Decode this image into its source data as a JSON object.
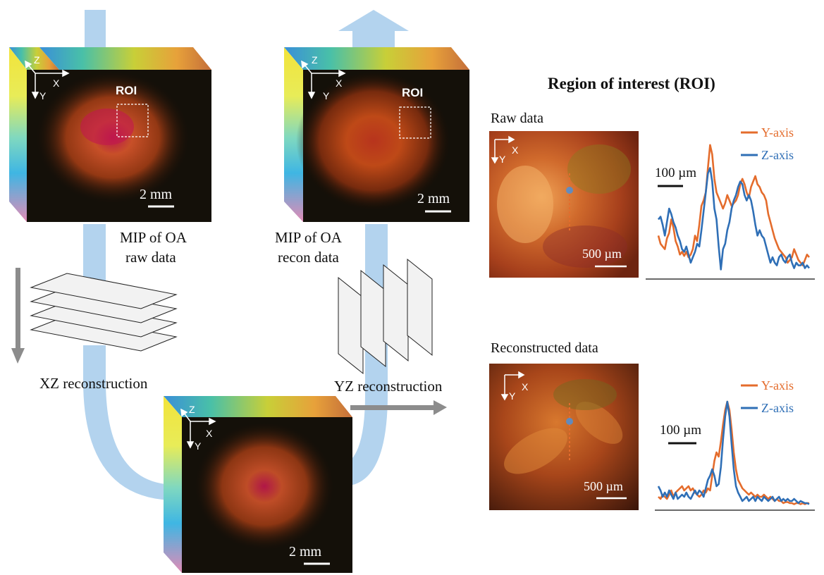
{
  "roi_section": {
    "title": "Region of interest (ROI)",
    "raw_label": "Raw data",
    "recon_label": "Reconstructed data"
  },
  "cubes": [
    {
      "id": "raw",
      "axis_z": "Z",
      "axis_x": "X",
      "axis_y": "Y",
      "roi_label": "ROI",
      "scale_label": "2 mm"
    },
    {
      "id": "recon",
      "axis_z": "Z",
      "axis_x": "X",
      "axis_y": "Y",
      "roi_label": "ROI",
      "scale_label": "2 mm"
    },
    {
      "id": "middle",
      "axis_z": "Z",
      "axis_x": "X",
      "axis_y": "Y",
      "scale_label": "2 mm"
    }
  ],
  "captions": {
    "mip_raw": [
      "MIP of OA",
      "raw data"
    ],
    "mip_recon": [
      "MIP of OA",
      "recon data"
    ],
    "xz": "XZ reconstruction",
    "yz": "YZ reconstruction"
  },
  "insets": [
    {
      "id": "raw",
      "axis_x": "X",
      "axis_y": "Y",
      "scale_label": "500 µm"
    },
    {
      "id": "recon",
      "axis_x": "X",
      "axis_y": "Y",
      "scale_label": "500 µm"
    }
  ],
  "chart_data": [
    {
      "type": "line",
      "title": "",
      "scale_label": "100 µm",
      "x": [
        0,
        1,
        2,
        3,
        4,
        5,
        6,
        7,
        8,
        9,
        10,
        11,
        12,
        13,
        14,
        15,
        16,
        17,
        18,
        19,
        20,
        21,
        22,
        23,
        24,
        25,
        26,
        27,
        28,
        29,
        30,
        31,
        32,
        33,
        34,
        35,
        36,
        37,
        38,
        39,
        40,
        41,
        42,
        43,
        44,
        45,
        46,
        47,
        48,
        49,
        50,
        51,
        52,
        53,
        54,
        55,
        56,
        57,
        58,
        59,
        60,
        61,
        62,
        63,
        64,
        65,
        66,
        67,
        68,
        69,
        70
      ],
      "ylim": [
        0,
        1
      ],
      "series": [
        {
          "name": "Y-axis",
          "color": "#e46c2c",
          "values": [
            0.3,
            0.24,
            0.22,
            0.2,
            0.28,
            0.32,
            0.42,
            0.36,
            0.26,
            0.22,
            0.16,
            0.18,
            0.15,
            0.18,
            0.14,
            0.16,
            0.2,
            0.3,
            0.26,
            0.38,
            0.52,
            0.56,
            0.62,
            0.8,
            0.97,
            0.9,
            0.72,
            0.62,
            0.58,
            0.54,
            0.5,
            0.54,
            0.6,
            0.56,
            0.52,
            0.54,
            0.56,
            0.6,
            0.68,
            0.72,
            0.68,
            0.62,
            0.58,
            0.66,
            0.7,
            0.74,
            0.68,
            0.66,
            0.62,
            0.6,
            0.56,
            0.46,
            0.4,
            0.34,
            0.28,
            0.24,
            0.2,
            0.18,
            0.16,
            0.14,
            0.1,
            0.12,
            0.14,
            0.2,
            0.16,
            0.12,
            0.1,
            0.08,
            0.12,
            0.16,
            0.14
          ]
        },
        {
          "name": "Z-axis",
          "color": "#2f6fb6",
          "values": [
            0.42,
            0.44,
            0.38,
            0.3,
            0.4,
            0.5,
            0.46,
            0.4,
            0.36,
            0.3,
            0.26,
            0.2,
            0.18,
            0.22,
            0.16,
            0.1,
            0.14,
            0.18,
            0.24,
            0.22,
            0.34,
            0.48,
            0.62,
            0.76,
            0.8,
            0.7,
            0.5,
            0.42,
            0.22,
            0.05,
            0.2,
            0.24,
            0.34,
            0.4,
            0.5,
            0.56,
            0.6,
            0.66,
            0.7,
            0.68,
            0.6,
            0.56,
            0.6,
            0.56,
            0.48,
            0.38,
            0.3,
            0.34,
            0.3,
            0.28,
            0.22,
            0.16,
            0.1,
            0.14,
            0.1,
            0.08,
            0.14,
            0.16,
            0.12,
            0.1,
            0.14,
            0.16,
            0.1,
            0.06,
            0.1,
            0.08,
            0.08,
            0.1,
            0.06,
            0.08,
            0.06
          ]
        }
      ]
    },
    {
      "type": "line",
      "title": "",
      "scale_label": "100 µm",
      "x": [
        0,
        1,
        2,
        3,
        4,
        5,
        6,
        7,
        8,
        9,
        10,
        11,
        12,
        13,
        14,
        15,
        16,
        17,
        18,
        19,
        20,
        21,
        22,
        23,
        24,
        25,
        26,
        27,
        28,
        29,
        30,
        31,
        32,
        33,
        34,
        35,
        36,
        37,
        38,
        39,
        40,
        41,
        42,
        43,
        44,
        45,
        46,
        47,
        48,
        49,
        50,
        51,
        52,
        53,
        54,
        55,
        56,
        57,
        58,
        59,
        60,
        61,
        62,
        63,
        64,
        65,
        66,
        67,
        68,
        69,
        70
      ],
      "ylim": [
        0,
        1
      ],
      "series": [
        {
          "name": "Y-axis",
          "color": "#e46c2c",
          "values": [
            0.1,
            0.08,
            0.12,
            0.1,
            0.08,
            0.12,
            0.16,
            0.1,
            0.14,
            0.16,
            0.18,
            0.2,
            0.16,
            0.18,
            0.2,
            0.16,
            0.18,
            0.14,
            0.12,
            0.1,
            0.12,
            0.16,
            0.14,
            0.18,
            0.16,
            0.3,
            0.44,
            0.52,
            0.48,
            0.62,
            0.78,
            0.92,
            1.0,
            0.92,
            0.74,
            0.52,
            0.36,
            0.26,
            0.22,
            0.18,
            0.16,
            0.14,
            0.12,
            0.14,
            0.12,
            0.1,
            0.12,
            0.1,
            0.1,
            0.12,
            0.1,
            0.08,
            0.1,
            0.08,
            0.06,
            0.08,
            0.06,
            0.06,
            0.04,
            0.05,
            0.05,
            0.04,
            0.04,
            0.03,
            0.04,
            0.04,
            0.03,
            0.04,
            0.03,
            0.04,
            0.04
          ]
        },
        {
          "name": "Z-axis",
          "color": "#2f6fb6",
          "values": [
            0.2,
            0.16,
            0.1,
            0.14,
            0.1,
            0.16,
            0.12,
            0.08,
            0.14,
            0.08,
            0.1,
            0.12,
            0.1,
            0.14,
            0.1,
            0.08,
            0.12,
            0.16,
            0.12,
            0.16,
            0.14,
            0.1,
            0.18,
            0.26,
            0.3,
            0.36,
            0.3,
            0.2,
            0.22,
            0.38,
            0.64,
            0.86,
            1.0,
            0.86,
            0.6,
            0.36,
            0.2,
            0.14,
            0.1,
            0.06,
            0.08,
            0.1,
            0.06,
            0.08,
            0.1,
            0.06,
            0.1,
            0.08,
            0.06,
            0.1,
            0.08,
            0.06,
            0.08,
            0.1,
            0.06,
            0.08,
            0.1,
            0.06,
            0.08,
            0.06,
            0.08,
            0.06,
            0.06,
            0.08,
            0.06,
            0.04,
            0.06,
            0.05,
            0.04,
            0.04,
            0.03
          ]
        }
      ]
    }
  ]
}
